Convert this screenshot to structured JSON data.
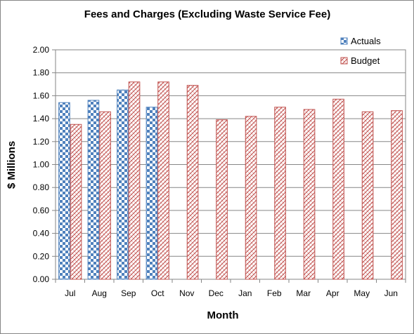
{
  "chart_data": {
    "type": "bar",
    "title": "Fees and Charges (Excluding  Waste Service Fee)",
    "xlabel": "Month",
    "ylabel": "$ Millions",
    "categories": [
      "Jul",
      "Aug",
      "Sep",
      "Oct",
      "Nov",
      "Dec",
      "Jan",
      "Feb",
      "Mar",
      "Apr",
      "May",
      "Jun"
    ],
    "series": [
      {
        "name": "Actuals",
        "color": "#4f81bd",
        "pattern": "checker",
        "values": [
          1.54,
          1.56,
          1.65,
          1.5,
          null,
          null,
          null,
          null,
          null,
          null,
          null,
          null
        ]
      },
      {
        "name": "Budget",
        "color": "#c0504d",
        "pattern": "diagonal-hatch",
        "values": [
          1.35,
          1.46,
          1.72,
          1.72,
          1.69,
          1.39,
          1.42,
          1.5,
          1.48,
          1.57,
          1.46,
          1.47
        ]
      }
    ],
    "ylim": [
      0,
      2.0
    ],
    "ytick_step": 0.2,
    "ytick_format": "0.00",
    "grid": true,
    "legend_position": "top-right"
  }
}
